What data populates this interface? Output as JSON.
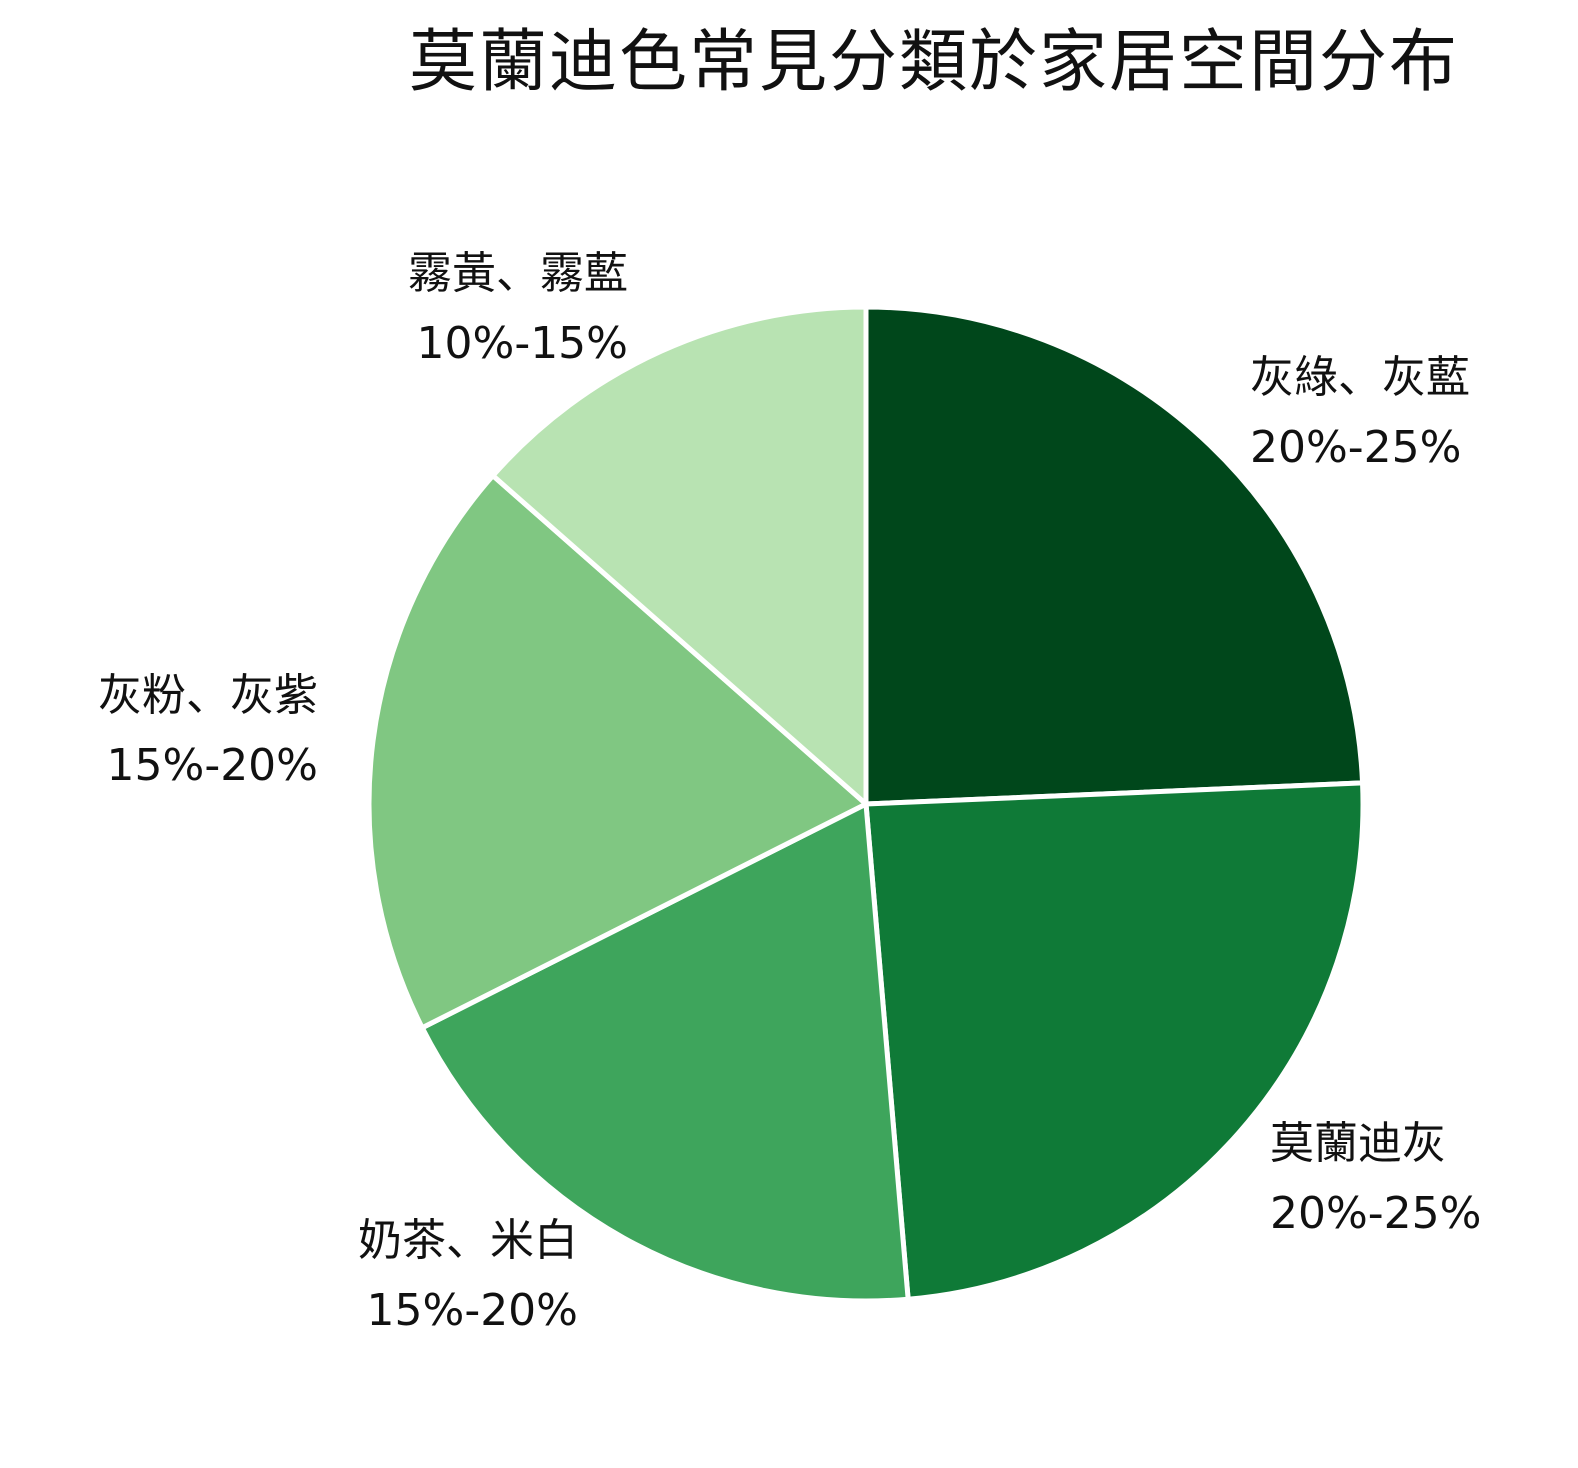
{
  "chart_data": {
    "type": "pie",
    "title": "莫蘭迪色常見分類於家居空間分布",
    "slices": [
      {
        "label": "灰綠、灰藍",
        "range": "20%-25%",
        "value": 22.5,
        "color": "#00471b"
      },
      {
        "label": "莫蘭迪灰",
        "range": "20%-25%",
        "value": 22.5,
        "color": "#0f7a37"
      },
      {
        "label": "奶茶、米白",
        "range": "15%-20%",
        "value": 17.5,
        "color": "#3ea55c"
      },
      {
        "label": "灰粉、灰紫",
        "range": "15%-20%",
        "value": 17.5,
        "color": "#80c782"
      },
      {
        "label": "霧黃、霧藍",
        "range": "10%-15%",
        "value": 12.5,
        "color": "#b8e3b2"
      }
    ],
    "start_angle": "12 o'clock",
    "direction": "clockwise",
    "slice_separator_color": "#ffffff",
    "legend": "none"
  }
}
